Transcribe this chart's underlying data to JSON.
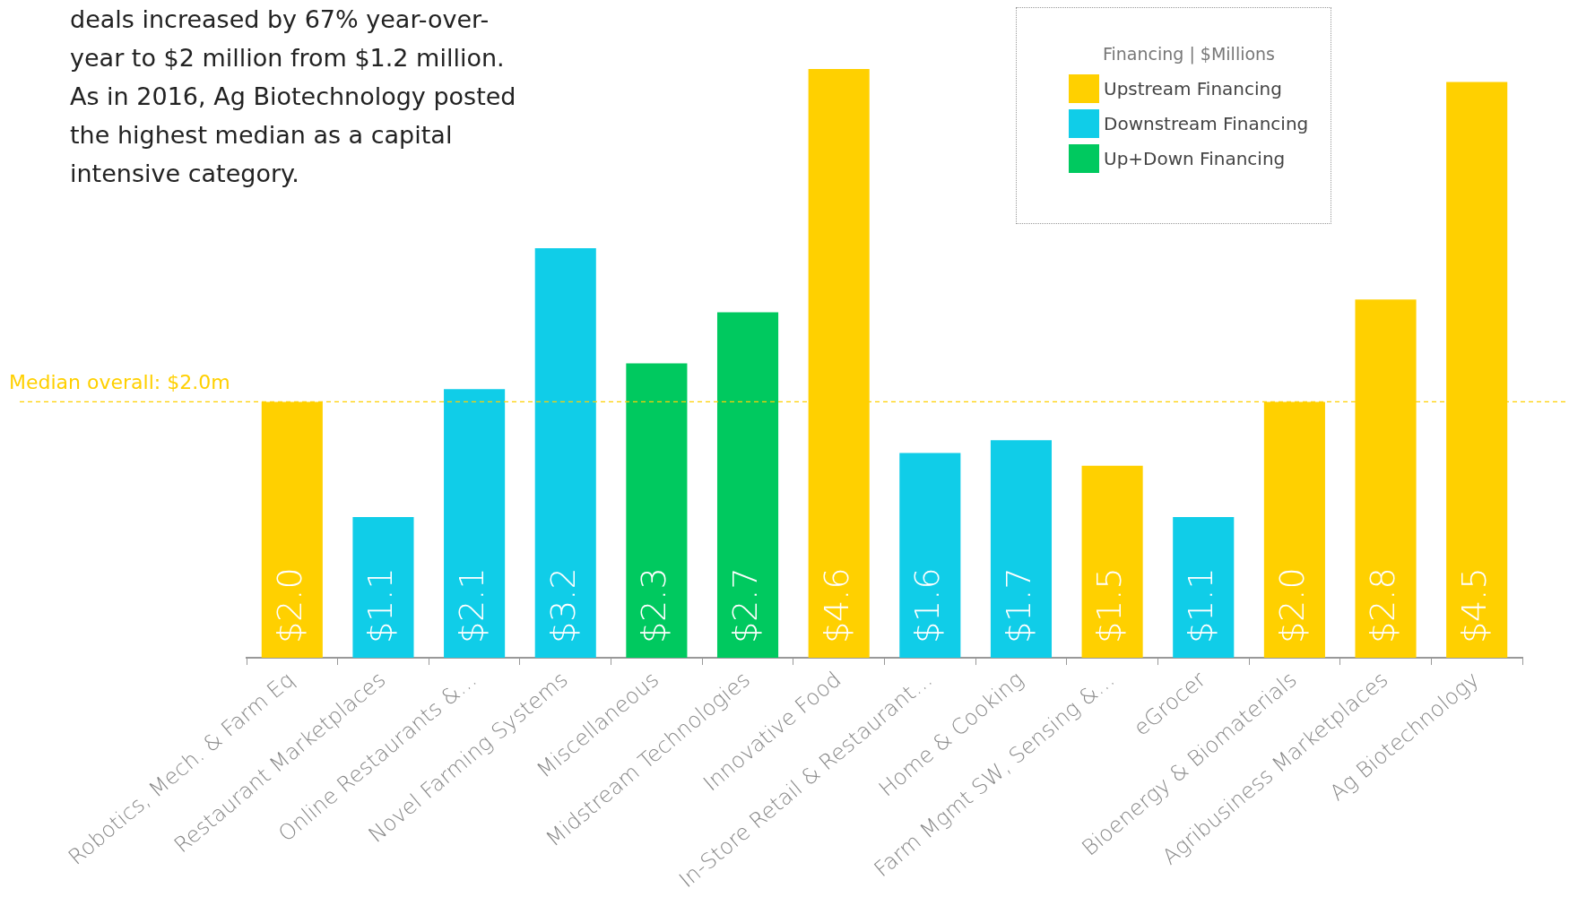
{
  "chart_data": {
    "type": "bar",
    "annotations": [
      "deals increased by 67% year-over-year to $2 million from $1.2 million. As in 2016, Ag Biotechnology posted the highest median as a capital intensive category."
    ],
    "legend_title": "Financing | $Millions",
    "categories": [
      "Robotics, Mech. & Farm Eq",
      "Restaurant Marketplaces",
      "Online Restaurants &…",
      "Novel Farming Systems",
      "Miscellaneous",
      "Midstream Technologies",
      "Innovative Food",
      "In-Store Retail & Restaurant…",
      "Home & Cooking",
      "Farm Mgmt SW, Sensing &…",
      "eGrocer",
      "Bioenergy & Biomaterials",
      "Agribusiness Marketplaces",
      "Ag Biotechnology"
    ],
    "series": [
      {
        "name": "Upstream Financing",
        "color": "#ffd000",
        "values": [
          2.0,
          null,
          null,
          null,
          null,
          null,
          4.6,
          null,
          null,
          1.5,
          null,
          2.0,
          2.8,
          4.5
        ],
        "value_labels": [
          "$2.0",
          null,
          null,
          null,
          null,
          null,
          "$4.6",
          null,
          null,
          "$1.5",
          null,
          "$2.0",
          "$2.8",
          "$4.5"
        ]
      },
      {
        "name": "Downstream Financing",
        "color": "#10cde8",
        "values": [
          null,
          1.1,
          2.1,
          3.2,
          null,
          null,
          null,
          1.6,
          1.7,
          null,
          1.1,
          null,
          null,
          null
        ],
        "value_labels": [
          null,
          "$1.1",
          "$2.1",
          "$3.2",
          null,
          null,
          null,
          "$1.6",
          "$1.7",
          null,
          "$1.1",
          null,
          null,
          null
        ]
      },
      {
        "name": "Up+Down Financing",
        "color": "#00c95f",
        "values": [
          null,
          null,
          null,
          null,
          2.3,
          2.7,
          null,
          null,
          null,
          null,
          null,
          null,
          null,
          null
        ],
        "value_labels": [
          null,
          null,
          null,
          null,
          "$2.3",
          "$2.7",
          null,
          null,
          null,
          null,
          null,
          null,
          null,
          null
        ]
      }
    ],
    "ref_lines": [
      {
        "axis": "y",
        "value": 2.0,
        "label": "Median overall: $2.0m",
        "color": "#ffd000",
        "line_style": "dashed"
      }
    ],
    "legend": "top right",
    "grid": false,
    "tick_labels": "x"
  }
}
